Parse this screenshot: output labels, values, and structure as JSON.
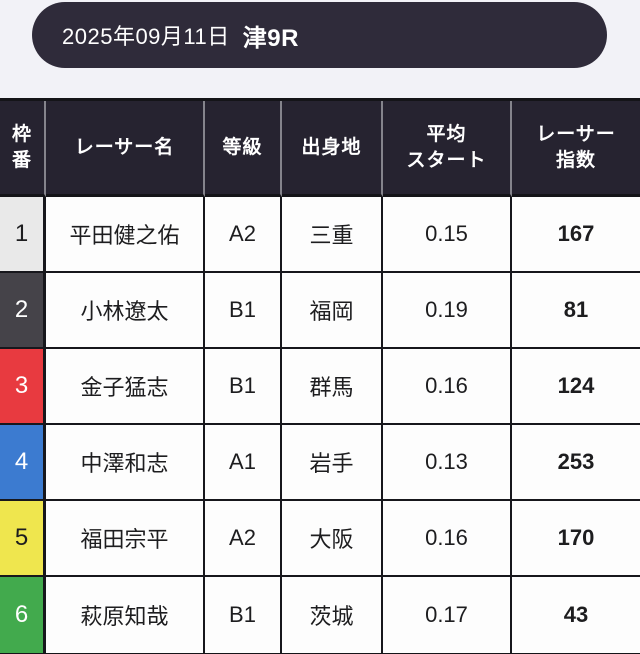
{
  "page": {
    "background": "#f2f2f7"
  },
  "race_header": {
    "date": "2025年09月11日",
    "race": "津9R",
    "background": "#2f2b3a",
    "text_color": "#ffffff"
  },
  "table": {
    "header": {
      "background": "#262330",
      "text_color": "#ffffff",
      "columns": [
        {
          "label": "枠\n番"
        },
        {
          "label": "レーサー名"
        },
        {
          "label": "等級"
        },
        {
          "label": "出身地"
        },
        {
          "label": "平均\nスタート"
        },
        {
          "label": "レーサー\n指数"
        }
      ]
    },
    "rows": [
      {
        "frame": "1",
        "frame_bg": "#e9e9e9",
        "frame_fg": "#1d1d1f",
        "name": "平田健之佑",
        "grade": "A2",
        "origin": "三重",
        "avg_start": "0.15",
        "index": "167"
      },
      {
        "frame": "2",
        "frame_bg": "#454349",
        "frame_fg": "#ffffff",
        "name": "小林遼太",
        "grade": "B1",
        "origin": "福岡",
        "avg_start": "0.19",
        "index": "81"
      },
      {
        "frame": "3",
        "frame_bg": "#e83a40",
        "frame_fg": "#ffffff",
        "name": "金子猛志",
        "grade": "B1",
        "origin": "群馬",
        "avg_start": "0.16",
        "index": "124"
      },
      {
        "frame": "4",
        "frame_bg": "#3c7bd0",
        "frame_fg": "#ffffff",
        "name": "中澤和志",
        "grade": "A1",
        "origin": "岩手",
        "avg_start": "0.13",
        "index": "253"
      },
      {
        "frame": "5",
        "frame_bg": "#efe64e",
        "frame_fg": "#1d1d1f",
        "name": "福田宗平",
        "grade": "A2",
        "origin": "大阪",
        "avg_start": "0.16",
        "index": "170"
      },
      {
        "frame": "6",
        "frame_bg": "#42aa4d",
        "frame_fg": "#ffffff",
        "name": "萩原知哉",
        "grade": "B1",
        "origin": "茨城",
        "avg_start": "0.17",
        "index": "43"
      }
    ]
  }
}
